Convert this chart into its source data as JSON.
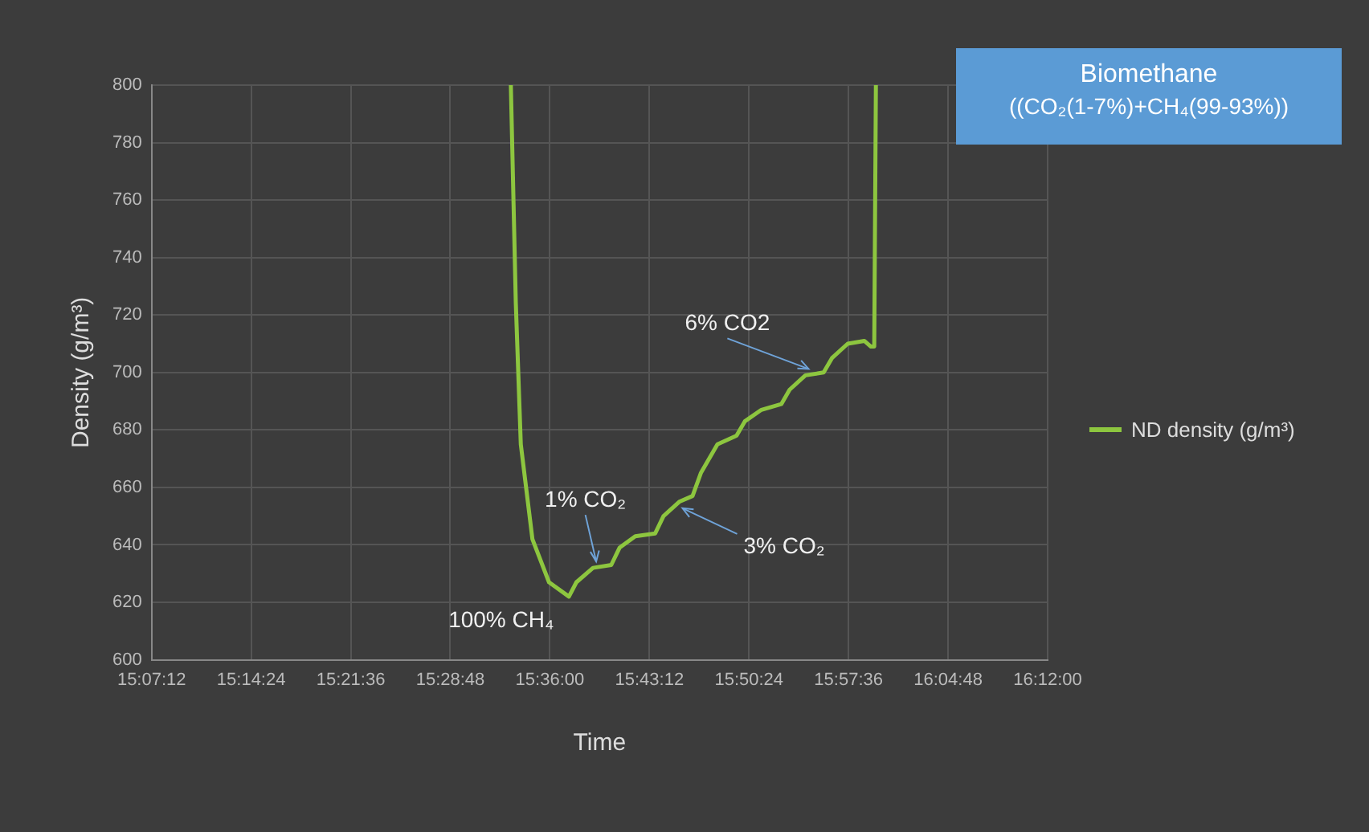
{
  "chart_data": {
    "type": "line",
    "title": "Biomethane",
    "subtitle": "((CO₂(1-7%)+CH₄(99-93%))",
    "xlabel": "Time",
    "ylabel": "Density (g/m³)",
    "xlim": [
      15.12,
      16.2
    ],
    "xticks": [
      {
        "value": 15.12,
        "label": "15:07:12"
      },
      {
        "value": 15.24,
        "label": "15:14:24"
      },
      {
        "value": 15.36,
        "label": "15:21:36"
      },
      {
        "value": 15.48,
        "label": "15:28:48"
      },
      {
        "value": 15.6,
        "label": "15:36:00"
      },
      {
        "value": 15.72,
        "label": "15:43:12"
      },
      {
        "value": 15.84,
        "label": "15:50:24"
      },
      {
        "value": 15.96,
        "label": "15:57:36"
      },
      {
        "value": 16.08,
        "label": "16:04:48"
      },
      {
        "value": 16.2,
        "label": "16:12:00"
      }
    ],
    "ylim": [
      600,
      800
    ],
    "yticks": [
      600,
      620,
      640,
      660,
      680,
      700,
      720,
      740,
      760,
      780,
      800
    ],
    "grid": true,
    "legend": "right",
    "marker": "none",
    "line_style": "solid",
    "series": [
      {
        "name": "ND density (g/m³)",
        "color": "#8dc63f",
        "x": [
          15.553,
          15.559,
          15.565,
          15.579,
          15.599,
          15.623,
          15.632,
          15.652,
          15.674,
          15.684,
          15.703,
          15.727,
          15.737,
          15.756,
          15.772,
          15.782,
          15.802,
          15.825,
          15.835,
          15.855,
          15.879,
          15.889,
          15.908,
          15.93,
          15.94,
          15.959,
          15.979,
          15.987,
          15.991,
          15.993
        ],
        "values": [
          800,
          724,
          675,
          642,
          627,
          622,
          627,
          632,
          633,
          639,
          643,
          644,
          650,
          655,
          657,
          665,
          675,
          678,
          683,
          687,
          689,
          694,
          699,
          700,
          705,
          710,
          711,
          709,
          709,
          800
        ]
      }
    ],
    "annotations": [
      {
        "text": "100% CH₄",
        "x": 15.623,
        "y": 622
      },
      {
        "text": "1% CO₂",
        "x": 15.652,
        "y": 632
      },
      {
        "text": "3% CO₂",
        "x": 15.756,
        "y": 655
      },
      {
        "text": "6% CO2",
        "x": 15.908,
        "y": 699
      }
    ]
  }
}
